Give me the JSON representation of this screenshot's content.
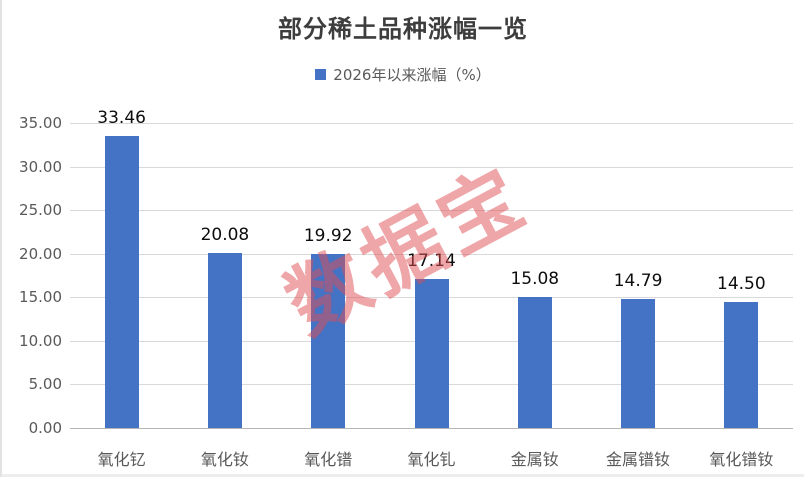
{
  "chart": {
    "title": "部分稀土品种涨幅一览",
    "legend": {
      "label": "2026年以来涨幅（%）",
      "swatch_color": "#4472c4"
    }
  },
  "watermark": {
    "text": "数据宝",
    "color": "rgba(224,78,83,0.5)"
  },
  "chart_data": {
    "type": "bar",
    "title": "部分稀土品种涨幅一览",
    "legend_entries": [
      "2026年以来涨幅（%）"
    ],
    "legend_position": "top",
    "categories": [
      "氧化钇",
      "氧化钕",
      "氧化镨",
      "氧化钆",
      "金属钕",
      "金属镨钕",
      "氧化镨钕"
    ],
    "values": [
      33.46,
      20.08,
      19.92,
      17.14,
      15.08,
      14.79,
      14.5
    ],
    "value_labels": [
      "33.46",
      "20.08",
      "19.92",
      "17.14",
      "15.08",
      "14.79",
      "14.50"
    ],
    "xlabel": "",
    "ylabel": "",
    "ylim": [
      0,
      35
    ],
    "y_ticks": [
      "0.00",
      "5.00",
      "10.00",
      "15.00",
      "20.00",
      "25.00",
      "30.00",
      "35.00"
    ],
    "grid": "horizontal",
    "gridline_color": "#d9d9d9",
    "bar_color": "#4472c4"
  }
}
